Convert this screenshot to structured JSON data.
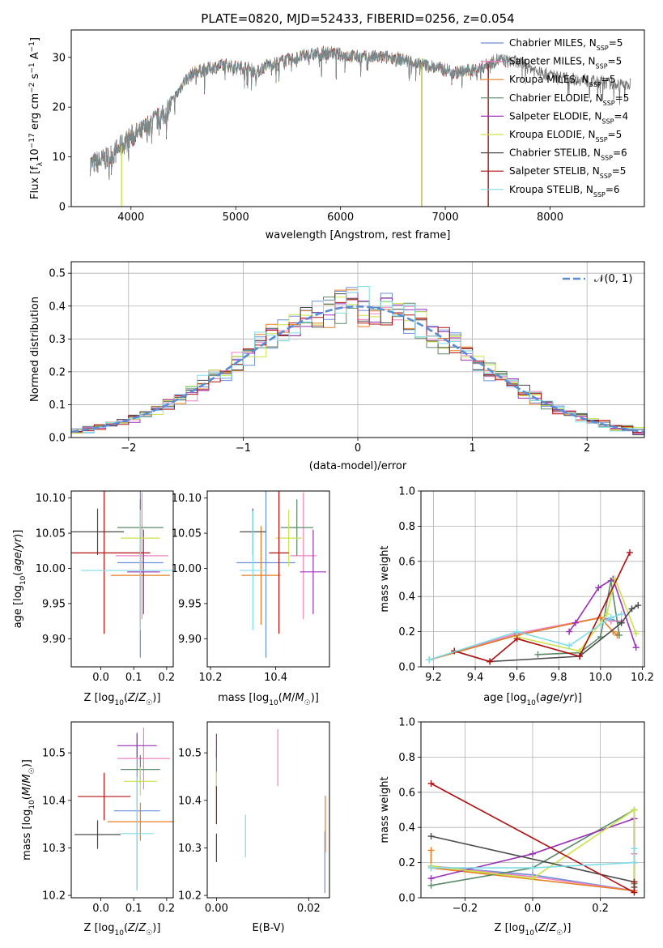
{
  "title": "PLATE=0820, MJD=52433, FIBERID=0256, z=0.054",
  "series": [
    {
      "name": "Chabrier MILES, N_SSP=5",
      "label_main": "Chabrier MILES, N",
      "label_sub": "SSP",
      "label_tail": "=5",
      "color": "#6a8fdb"
    },
    {
      "name": "Salpeter MILES, N_SSP=5",
      "label_main": "Salpeter MILES, N",
      "label_sub": "SSP",
      "label_tail": "=5",
      "color": "#ee82c0"
    },
    {
      "name": "Kroupa MILES, N_SSP=5",
      "label_main": "Kroupa MILES, N",
      "label_sub": "SSP",
      "label_tail": "=5",
      "color": "#e67e22"
    },
    {
      "name": "Chabrier ELODIE, N_SSP=5",
      "label_main": "Chabrier ELODIE, N",
      "label_sub": "SSP",
      "label_tail": "=5",
      "color": "#5b8a6b"
    },
    {
      "name": "Salpeter ELODIE, N_SSP=4",
      "label_main": "Salpeter ELODIE, N",
      "label_sub": "SSP",
      "label_tail": "=4",
      "color": "#9b30b8"
    },
    {
      "name": "Kroupa ELODIE, N_SSP=5",
      "label_main": "Kroupa ELODIE, N",
      "label_sub": "SSP",
      "label_tail": "=5",
      "color": "#c9e34a"
    },
    {
      "name": "Chabrier STELIB, N_SSP=6",
      "label_main": "Chabrier STELIB, N",
      "label_sub": "SSP",
      "label_tail": "=6",
      "color": "#4a4a4a"
    },
    {
      "name": "Salpeter STELIB, N_SSP=5",
      "label_main": "Salpeter STELIB, N",
      "label_sub": "SSP",
      "label_tail": "=5",
      "color": "#b01010"
    },
    {
      "name": "Kroupa STELIB, N_SSP=6",
      "label_main": "Kroupa STELIB, N",
      "label_sub": "SSP",
      "label_tail": "=6",
      "color": "#7fdde8"
    }
  ],
  "chart_data": [
    {
      "id": "spectrum",
      "type": "line",
      "xlabel": "wavelength [Angstrom, rest frame]",
      "ylabel": "Flux [f_λ 10^-17 erg cm^-2 s^-1 A^-1]",
      "xlim": [
        3430,
        8900
      ],
      "ylim": [
        0,
        35.5
      ],
      "xticks": [
        4000,
        5000,
        6000,
        7000,
        8000
      ],
      "yticks": [
        0,
        10,
        20,
        30
      ],
      "grid": false,
      "legend": "right",
      "data_range": [
        3610,
        8770
      ],
      "continuum": [
        [
          3610,
          8.5
        ],
        [
          3700,
          9
        ],
        [
          3800,
          10
        ],
        [
          3900,
          12
        ],
        [
          4000,
          14
        ],
        [
          4100,
          15
        ],
        [
          4200,
          17
        ],
        [
          4300,
          18
        ],
        [
          4400,
          21
        ],
        [
          4500,
          25
        ],
        [
          4600,
          27
        ],
        [
          4700,
          27.5
        ],
        [
          4800,
          28
        ],
        [
          4900,
          28.5
        ],
        [
          5000,
          28
        ],
        [
          5100,
          28
        ],
        [
          5200,
          27
        ],
        [
          5300,
          28.5
        ],
        [
          5500,
          29.5
        ],
        [
          5700,
          30.5
        ],
        [
          5900,
          31
        ],
        [
          6000,
          30.5
        ],
        [
          6200,
          30
        ],
        [
          6500,
          30
        ],
        [
          6700,
          29
        ],
        [
          6900,
          28
        ],
        [
          7100,
          27
        ],
        [
          7300,
          27.5
        ],
        [
          7500,
          29.5
        ],
        [
          7700,
          29
        ],
        [
          7900,
          27
        ],
        [
          8100,
          26
        ],
        [
          8300,
          25.5
        ],
        [
          8500,
          25
        ],
        [
          8700,
          24.5
        ],
        [
          8770,
          24.5
        ]
      ],
      "spikes": [
        {
          "x": 3910,
          "y": 0
        },
        {
          "x": 6775,
          "y": 0
        },
        {
          "x": 7410,
          "y": 0
        }
      ]
    },
    {
      "id": "residuals",
      "type": "histogram",
      "xlabel": "(data-model)/error",
      "ylabel": "Normed distribution",
      "xlim": [
        -2.5,
        2.5
      ],
      "ylim": [
        0,
        0.535
      ],
      "xticks": [
        -2,
        -1,
        0,
        1,
        2
      ],
      "yticks": [
        0.0,
        0.1,
        0.2,
        0.3,
        0.4,
        0.5
      ],
      "grid": true,
      "legend": "top-right",
      "reference": {
        "name": "N(0,1)",
        "label": "𝒩(0, 1)",
        "mu": 0,
        "sigma": 1,
        "color": "#5b8bd6"
      },
      "bin_width": 0.1
    },
    {
      "id": "age-vs-Z",
      "type": "errorbar",
      "xlabel": "Z [log10(Z/Z☉)]",
      "ylabel": "age [log10(age/yr)]",
      "xlim": [
        -0.09,
        0.22
      ],
      "ylim": [
        9.86,
        10.11
      ],
      "xticks": [
        0.0,
        0.1,
        0.2
      ],
      "yticks": [
        9.9,
        9.95,
        10.0,
        10.05,
        10.1
      ],
      "points": [
        {
          "x": 0.12,
          "xerr": 0.07,
          "y": 10.008,
          "yerr": 0.135
        },
        {
          "x": 0.125,
          "xerr": 0.08,
          "y": 10.018,
          "yerr": 0.09
        },
        {
          "x": 0.12,
          "xerr": 0.09,
          "y": 9.99,
          "yerr": 0.07
        },
        {
          "x": 0.12,
          "xerr": 0.07,
          "y": 10.058,
          "yerr": 0.04
        },
        {
          "x": 0.13,
          "xerr": 0.05,
          "y": 9.995,
          "yerr": 0.06
        },
        {
          "x": 0.12,
          "xerr": 0.06,
          "y": 10.043,
          "yerr": 0.04
        },
        {
          "x": -0.01,
          "xerr": 0.08,
          "y": 10.052,
          "yerr": 0.033
        },
        {
          "x": 0.01,
          "xerr": 0.14,
          "y": 10.022,
          "yerr": 0.115
        },
        {
          "x": 0.12,
          "xerr": 0.18,
          "y": 9.997,
          "yerr": 0.085
        }
      ]
    },
    {
      "id": "age-vs-mass",
      "type": "errorbar",
      "xlabel": "mass [log10(M/M☉)]",
      "ylabel": "",
      "xlim": [
        10.19,
        10.565
      ],
      "ylim": [
        9.86,
        10.11
      ],
      "xticks": [
        10.2,
        10.4
      ],
      "yticks": [
        9.9,
        9.95,
        10.0,
        10.05,
        10.1
      ],
      "points": [
        {
          "x": 10.37,
          "xerr": 0.09,
          "y": 10.008,
          "yerr": 0.135
        },
        {
          "x": 10.485,
          "xerr": 0.04,
          "y": 10.018,
          "yerr": 0.09
        },
        {
          "x": 10.355,
          "xerr": 0.06,
          "y": 9.99,
          "yerr": 0.07
        },
        {
          "x": 10.465,
          "xerr": 0.05,
          "y": 10.058,
          "yerr": 0.04
        },
        {
          "x": 10.515,
          "xerr": 0.04,
          "y": 9.995,
          "yerr": 0.06
        },
        {
          "x": 10.44,
          "xerr": 0.04,
          "y": 10.043,
          "yerr": 0.04
        },
        {
          "x": 10.33,
          "xerr": 0.04,
          "y": 10.052,
          "yerr": 0.033
        },
        {
          "x": 10.41,
          "xerr": 0.03,
          "y": 10.022,
          "yerr": 0.115
        },
        {
          "x": 10.33,
          "xerr": 0.04,
          "y": 9.997,
          "yerr": 0.085
        }
      ]
    },
    {
      "id": "massweight-vs-age",
      "type": "line",
      "xlabel": "age [log10(age/yr)]",
      "ylabel": "mass weight",
      "xlim": [
        9.14,
        10.21
      ],
      "ylim": [
        0,
        1.0
      ],
      "xticks": [
        9.2,
        9.4,
        9.6,
        9.8,
        10.0,
        10.2
      ],
      "yticks": [
        0.0,
        0.2,
        0.4,
        0.6,
        0.8,
        1.0
      ],
      "grid": true,
      "lines": [
        {
          "x": [
            9.18,
            9.6,
            10.0,
            10.05,
            10.1
          ],
          "y": [
            0.04,
            0.18,
            0.28,
            0.27,
            0.25
          ]
        },
        {
          "x": [
            9.18,
            9.6,
            10.0,
            10.05,
            10.1
          ],
          "y": [
            0.04,
            0.19,
            0.28,
            0.26,
            0.26
          ]
        },
        {
          "x": [
            9.18,
            9.6,
            10.0,
            10.06,
            10.08
          ],
          "y": [
            0.04,
            0.18,
            0.28,
            0.2,
            0.18
          ]
        },
        {
          "x": [
            9.7,
            9.9,
            10.0,
            10.05,
            10.09
          ],
          "y": [
            0.07,
            0.08,
            0.17,
            0.49,
            0.18
          ]
        },
        {
          "x": [
            9.85,
            9.88,
            9.99,
            10.06,
            10.17
          ],
          "y": [
            0.2,
            0.25,
            0.45,
            0.5,
            0.11
          ]
        },
        {
          "x": [
            9.6,
            9.9,
            10.03,
            10.07,
            10.17
          ],
          "y": [
            0.17,
            0.09,
            0.3,
            0.5,
            0.19
          ]
        },
        {
          "x": [
            9.3,
            9.47,
            9.9,
            10.1,
            10.15,
            10.18
          ],
          "y": [
            0.09,
            0.03,
            0.06,
            0.25,
            0.33,
            0.35
          ]
        },
        {
          "x": [
            9.3,
            9.47,
            9.6,
            9.9,
            10.14
          ],
          "y": [
            0.09,
            0.03,
            0.16,
            0.06,
            0.65
          ]
        },
        {
          "x": [
            9.18,
            9.6,
            9.85,
            10.05,
            10.1
          ],
          "y": [
            0.04,
            0.2,
            0.12,
            0.28,
            0.3
          ]
        }
      ]
    },
    {
      "id": "mass-vs-Z",
      "type": "errorbar",
      "xlabel": "Z [log10(Z/Z☉)]",
      "ylabel": "mass [log10(M/M☉)]",
      "xlim": [
        -0.09,
        0.22
      ],
      "ylim": [
        10.195,
        10.565
      ],
      "xticks": [
        0.0,
        0.1,
        0.2
      ],
      "yticks": [
        10.2,
        10.3,
        10.4,
        10.5
      ],
      "points": [
        {
          "x": 0.11,
          "xerr": 0.07,
          "y": 10.378,
          "yerr": 0.165
        },
        {
          "x": 0.13,
          "xerr": 0.08,
          "y": 10.488,
          "yerr": 0.065
        },
        {
          "x": 0.12,
          "xerr": 0.1,
          "y": 10.355,
          "yerr": 0.04
        },
        {
          "x": 0.12,
          "xerr": 0.06,
          "y": 10.465,
          "yerr": 0.03
        },
        {
          "x": 0.11,
          "xerr": 0.06,
          "y": 10.515,
          "yerr": 0.025
        },
        {
          "x": 0.12,
          "xerr": 0.05,
          "y": 10.44,
          "yerr": 0.03
        },
        {
          "x": -0.01,
          "xerr": 0.07,
          "y": 10.328,
          "yerr": 0.03
        },
        {
          "x": 0.01,
          "xerr": 0.08,
          "y": 10.408,
          "yerr": 0.05
        },
        {
          "x": 0.11,
          "xerr": 0.05,
          "y": 10.33,
          "yerr": 0.12
        }
      ]
    },
    {
      "id": "mass-vs-EBV",
      "type": "errorbar",
      "xlabel": "E(B-V)",
      "ylabel": "",
      "xlim": [
        -0.002,
        0.0245
      ],
      "ylim": [
        10.195,
        10.565
      ],
      "xticks": [
        0.0,
        0.02
      ],
      "yticks": [
        10.2,
        10.3,
        10.4,
        10.5
      ],
      "points": [
        {
          "x": 0.0235,
          "xerr": 0,
          "y": 10.27,
          "yerr": 0.065
        },
        {
          "x": 0.0133,
          "xerr": 0,
          "y": 10.49,
          "yerr": 0.06
        },
        {
          "x": 0.0236,
          "xerr": 0,
          "y": 10.35,
          "yerr": 0.06
        },
        {
          "x": 0.0,
          "xerr": 0,
          "y": 10.465,
          "yerr": 0.04
        },
        {
          "x": 0.0,
          "xerr": 0,
          "y": 10.515,
          "yerr": 0.025
        },
        {
          "x": 0.0,
          "xerr": 0,
          "y": 10.44,
          "yerr": 0.02
        },
        {
          "x": 0.0,
          "xerr": 0,
          "y": 10.3,
          "yerr": 0.03
        },
        {
          "x": 0.0,
          "xerr": 0,
          "y": 10.39,
          "yerr": 0.04
        },
        {
          "x": 0.0063,
          "xerr": 0,
          "y": 10.325,
          "yerr": 0.045
        }
      ]
    },
    {
      "id": "massweight-vs-Z",
      "type": "line",
      "xlabel": "Z [log10(Z/Z☉)]",
      "ylabel": "mass weight",
      "xlim": [
        -0.33,
        0.33
      ],
      "ylim": [
        0,
        1.0
      ],
      "xticks": [
        -0.2,
        0.0,
        0.2
      ],
      "yticks": [
        0.0,
        0.2,
        0.4,
        0.6,
        0.8,
        1.0
      ],
      "grid": true,
      "lines": [
        {
          "x": [
            -0.3,
            0.0,
            0.3,
            0.3
          ],
          "y": [
            0.18,
            0.13,
            0.04,
            0.28
          ]
        },
        {
          "x": [
            -0.3,
            0.0,
            0.3,
            0.3
          ],
          "y": [
            0.18,
            0.12,
            0.04,
            0.25
          ]
        },
        {
          "x": [
            -0.3,
            -0.3,
            0.3,
            0.3
          ],
          "y": [
            0.27,
            0.17,
            0.04,
            0.2
          ]
        },
        {
          "x": [
            -0.3,
            0.0,
            0.3,
            0.3
          ],
          "y": [
            0.07,
            0.17,
            0.5,
            0.08
          ]
        },
        {
          "x": [
            -0.3,
            0.0,
            0.3,
            0.3
          ],
          "y": [
            0.11,
            0.25,
            0.45,
            0.2
          ]
        },
        {
          "x": [
            -0.3,
            0.0,
            0.3,
            0.3
          ],
          "y": [
            0.18,
            0.11,
            0.5,
            0.09
          ]
        },
        {
          "x": [
            -0.3,
            0.3,
            0.3
          ],
          "y": [
            0.35,
            0.09,
            0.06
          ]
        },
        {
          "x": [
            -0.3,
            0.3,
            0.3
          ],
          "y": [
            0.65,
            0.03,
            0.09
          ]
        },
        {
          "x": [
            -0.3,
            0.0,
            0.3,
            0.3
          ],
          "y": [
            0.17,
            0.17,
            0.2,
            0.28
          ]
        }
      ]
    }
  ]
}
